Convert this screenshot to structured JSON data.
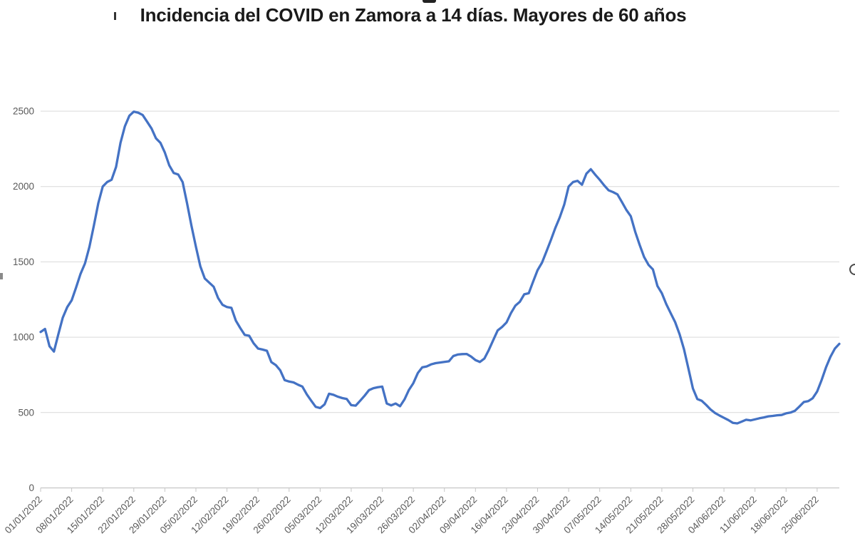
{
  "page": {
    "background": "#ffffff"
  },
  "chart": {
    "title": "Incidencia del COVID en Zamora a 14 días. Mayores de 60 años"
  },
  "chart_data": {
    "type": "line",
    "title": "Incidencia del COVID en Zamora a 14 días. Mayores de 60 años",
    "xlabel": "",
    "ylabel": "",
    "legend": "none",
    "grid": "horizontal",
    "frequency": "daily",
    "x_start_date": "01/01/2022",
    "x_end_date": "30/06/2022",
    "x_tick_labels": [
      "01/01/2022",
      "08/01/2022",
      "15/01/2022",
      "22/01/2022",
      "29/01/2022",
      "05/02/2022",
      "12/02/2022",
      "19/02/2022",
      "26/02/2022",
      "05/03/2022",
      "12/03/2022",
      "19/03/2022",
      "26/03/2022",
      "02/04/2022",
      "09/04/2022",
      "16/04/2022",
      "23/04/2022",
      "30/04/2022",
      "07/05/2022",
      "14/05/2022",
      "21/05/2022",
      "28/05/2022",
      "04/06/2022",
      "11/06/2022",
      "18/06/2022",
      "25/06/2022"
    ],
    "y_ticks": [
      0,
      500,
      1000,
      1500,
      2000,
      2500
    ],
    "ylim": [
      0,
      2500
    ],
    "values": [
      1035,
      1055,
      940,
      905,
      1020,
      1130,
      1200,
      1245,
      1330,
      1420,
      1490,
      1600,
      1740,
      1890,
      2000,
      2030,
      2045,
      2130,
      2290,
      2400,
      2470,
      2497,
      2490,
      2475,
      2430,
      2385,
      2320,
      2290,
      2225,
      2140,
      2090,
      2080,
      2030,
      1890,
      1740,
      1600,
      1470,
      1390,
      1362,
      1335,
      1260,
      1215,
      1200,
      1195,
      1110,
      1060,
      1015,
      1010,
      960,
      925,
      918,
      910,
      835,
      815,
      780,
      715,
      706,
      700,
      685,
      672,
      620,
      578,
      538,
      530,
      555,
      625,
      618,
      605,
      596,
      590,
      549,
      546,
      578,
      611,
      649,
      662,
      668,
      672,
      560,
      548,
      560,
      542,
      587,
      650,
      695,
      762,
      800,
      806,
      820,
      828,
      832,
      836,
      840,
      875,
      885,
      888,
      889,
      872,
      848,
      836,
      858,
      915,
      980,
      1045,
      1068,
      1098,
      1160,
      1210,
      1235,
      1285,
      1292,
      1370,
      1445,
      1495,
      1570,
      1645,
      1725,
      1795,
      1880,
      2000,
      2030,
      2038,
      2012,
      2085,
      2115,
      2078,
      2045,
      2008,
      1975,
      1963,
      1948,
      1898,
      1845,
      1803,
      1700,
      1612,
      1532,
      1480,
      1450,
      1340,
      1292,
      1220,
      1160,
      1100,
      1020,
      920,
      790,
      660,
      590,
      578,
      550,
      520,
      497,
      480,
      465,
      450,
      432,
      428,
      440,
      452,
      448,
      455,
      462,
      468,
      475,
      478,
      482,
      484,
      495,
      500,
      512,
      540,
      570,
      576,
      595,
      640,
      715,
      800,
      870,
      925,
      956
    ],
    "colors": {
      "line": "#4472C4",
      "gridline": "#D9D9D9",
      "axis_line": "#C6C6C6",
      "tick_label": "#595959",
      "title": "#1a1a1a"
    }
  }
}
